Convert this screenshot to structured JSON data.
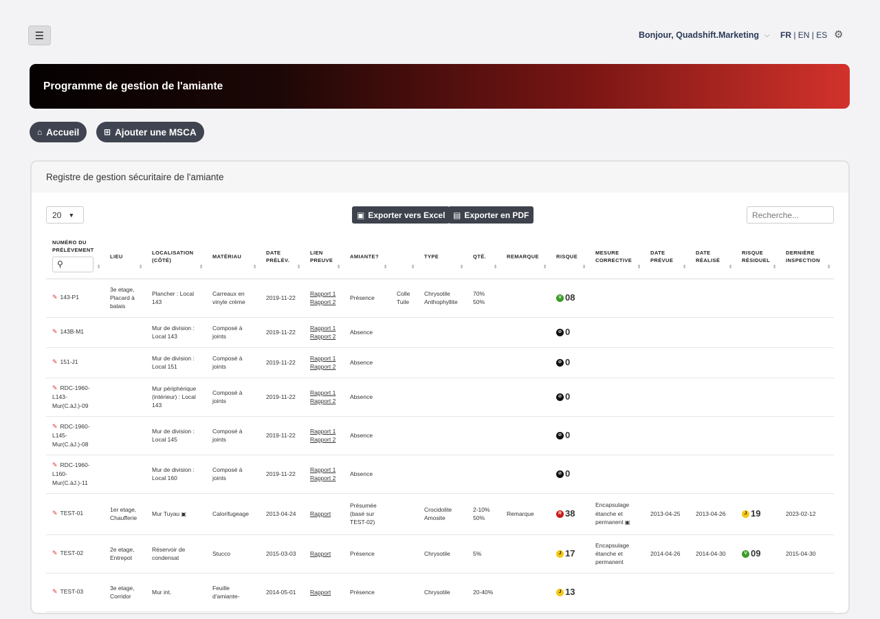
{
  "header": {
    "menu_icon": "☰",
    "greeting": "Bonjour, Quadshift.Marketing",
    "languages": {
      "active": "FR",
      "sep1": " | ",
      "en": "EN",
      "sep2": " | ",
      "es": "ES"
    }
  },
  "banner": {
    "title": "Programme de gestion de l'amiante"
  },
  "actions": {
    "home_label": "Accueil",
    "add_label": "Ajouter une MSCA"
  },
  "card": {
    "title": "Registre de gestion sécuritaire de l'amiante",
    "page_size": "20",
    "export_excel": "Exporter vers Excel",
    "export_pdf": "Exporter en PDF",
    "search_placeholder": "Recherche..."
  },
  "columns": [
    "Numéro du prélèvement",
    "Lieu",
    "Localisation (côté)",
    "Matériau",
    "Date prélèv.",
    "Lien preuve",
    "Amiante?",
    "",
    "Type",
    "Qté.",
    "Remarque",
    "Risque",
    "Mesure corrective",
    "Date prévue",
    "Date réalisé",
    "Risque résiduel",
    "Dernière inspection"
  ],
  "rows": [
    {
      "id": "143-P1",
      "lieu": "3e etage, Placard à balais",
      "loc": "Plancher : Local 143",
      "mat": "Carreaux en vinyle crème",
      "date": "2019-11-22",
      "liens": [
        "Rapport 1",
        "Rapport 2"
      ],
      "amiante": "Présence",
      "extra": "Colle Tuile",
      "type": "Chrysotile Anthophyllite",
      "qte": "70% 50%",
      "rem": "",
      "risk_letter": "V",
      "risk_val": "08",
      "mesure": "",
      "prevue": "",
      "realise": "",
      "res_letter": "",
      "res_val": "",
      "insp": ""
    },
    {
      "id": "143B-M1",
      "lieu": "",
      "loc": "Mur de division : Local 143",
      "mat": "Composé à joints",
      "date": "2019-11-22",
      "liens": [
        "Rapport 1",
        "Rapport 2"
      ],
      "amiante": "Absence",
      "extra": "",
      "type": "",
      "qte": "",
      "rem": "",
      "risk_letter": "N",
      "risk_val": "0",
      "mesure": "",
      "prevue": "",
      "realise": "",
      "res_letter": "",
      "res_val": "",
      "insp": ""
    },
    {
      "id": "151-J1",
      "lieu": "",
      "loc": "Mur de division : Local 151",
      "mat": "Composé à joints",
      "date": "2019-11-22",
      "liens": [
        "Rapport 1",
        "Rapport 2"
      ],
      "amiante": "Absence",
      "extra": "",
      "type": "",
      "qte": "",
      "rem": "",
      "risk_letter": "N",
      "risk_val": "0",
      "mesure": "",
      "prevue": "",
      "realise": "",
      "res_letter": "",
      "res_val": "",
      "insp": ""
    },
    {
      "id": "RDC-1960-L143-Mur(C.àJ.)-09",
      "lieu": "",
      "loc": "Mur périphérique (intérieur) : Local 143",
      "mat": "Composé à joints",
      "date": "2019-11-22",
      "liens": [
        "Rapport 1",
        "Rapport 2"
      ],
      "amiante": "Absence",
      "extra": "",
      "type": "",
      "qte": "",
      "rem": "",
      "risk_letter": "N",
      "risk_val": "0",
      "mesure": "",
      "prevue": "",
      "realise": "",
      "res_letter": "",
      "res_val": "",
      "insp": ""
    },
    {
      "id": "RDC-1960-L145-Mur(C.àJ.)-08",
      "lieu": "",
      "loc": "Mur de division : Local 145",
      "mat": "Composé à joints",
      "date": "2019-11-22",
      "liens": [
        "Rapport 1",
        "Rapport 2"
      ],
      "amiante": "Absence",
      "extra": "",
      "type": "",
      "qte": "",
      "rem": "",
      "risk_letter": "N",
      "risk_val": "0",
      "mesure": "",
      "prevue": "",
      "realise": "",
      "res_letter": "",
      "res_val": "",
      "insp": ""
    },
    {
      "id": "RDC-1960-L160-Mur(C.àJ.)-11",
      "lieu": "",
      "loc": "Mur de division : Local 160",
      "mat": "Composé à joints",
      "date": "2019-11-22",
      "liens": [
        "Rapport 1",
        "Rapport 2"
      ],
      "amiante": "Absence",
      "extra": "",
      "type": "",
      "qte": "",
      "rem": "",
      "risk_letter": "N",
      "risk_val": "0",
      "mesure": "",
      "prevue": "",
      "realise": "",
      "res_letter": "",
      "res_val": "",
      "insp": ""
    },
    {
      "id": "TEST-01",
      "lieu": "1er etage, Chaufferie",
      "loc": "Mur Tuyau",
      "loc_img": true,
      "mat": "Calorifugeage",
      "date": "2013-04-24",
      "liens": [
        "Rapport"
      ],
      "amiante": "Présumée (basé sur TEST-02)",
      "extra": "",
      "type": "Crocidolite Amosite",
      "qte": "2-10% 50%",
      "rem": "Remarque",
      "risk_letter": "R",
      "risk_val": "38",
      "mesure": "Encapsulage étanche et permanent",
      "mesure_img": true,
      "prevue": "2013-04-25",
      "realise": "2013-04-26",
      "res_letter": "J",
      "res_val": "19",
      "insp": "2023-02-12"
    },
    {
      "id": "TEST-02",
      "lieu": "2e etage, Entrepot",
      "loc": "Réservoir de condensat",
      "mat": "Stucco",
      "date": "2015-03-03",
      "liens": [
        "Rapport"
      ],
      "amiante": "Présence",
      "extra": "",
      "type": "Chrysotile",
      "qte": "5%",
      "rem": "",
      "risk_letter": "J",
      "risk_val": "17",
      "mesure": "Encapsulage étanche et permanent",
      "prevue": "2014-04-26",
      "realise": "2014-04-30",
      "res_letter": "V",
      "res_val": "09",
      "insp": "2015-04-30"
    },
    {
      "id": "TEST-03",
      "lieu": "3e etage, Corridor",
      "loc": "Mur int.",
      "mat": "Feuille d'amiante-",
      "date": "2014-05-01",
      "liens": [
        "Rapport"
      ],
      "amiante": "Présence",
      "extra": "",
      "type": "Chrysotile",
      "qte": "20-40%",
      "rem": "",
      "risk_letter": "J",
      "risk_val": "13",
      "mesure": "",
      "prevue": "",
      "realise": "",
      "res_letter": "",
      "res_val": "",
      "insp": ""
    }
  ]
}
